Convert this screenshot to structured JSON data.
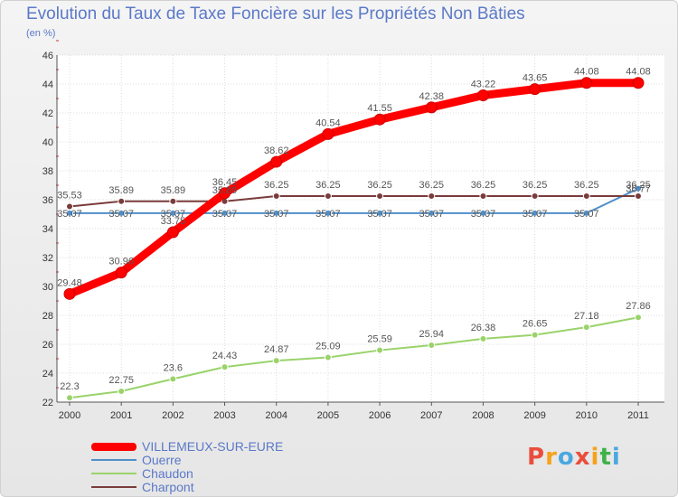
{
  "title": "Evolution du Taux de Taxe Foncière sur les Propriétés Non Bâties",
  "subtitle": "(en %)",
  "logo": {
    "text": "Proxiti",
    "colors": [
      "#e94e3c",
      "#f7a21b",
      "#4aa8e0",
      "#e94e3c",
      "#f7a21b",
      "#3fb24a",
      "#4aa8e0"
    ]
  },
  "chart_data": {
    "type": "line",
    "title": "Evolution du Taux de Taxe Foncière sur les Propriétés Non Bâties",
    "ylabel": "(en %)",
    "xlabel": "",
    "ylim": [
      22,
      46
    ],
    "yticks": [
      22,
      24,
      26,
      28,
      30,
      32,
      34,
      36,
      38,
      40,
      42,
      44,
      46
    ],
    "x": [
      "2000",
      "2001",
      "2002",
      "2003",
      "2004",
      "2005",
      "2006",
      "2007",
      "2008",
      "2009",
      "2010",
      "2011"
    ],
    "grid": true,
    "legend_position": "bottom-left",
    "series": [
      {
        "name": "VILLEMEUX-SUR-EURE",
        "color": "#ff0000",
        "values": [
          29.48,
          30.96,
          33.75,
          36.45,
          38.62,
          40.54,
          41.55,
          42.38,
          43.22,
          43.65,
          44.08,
          44.08
        ],
        "labels": [
          "29.48",
          "30.96",
          "33.75",
          "36.45",
          "38.62",
          "40.54",
          "41.55",
          "42.38",
          "43.22",
          "43.65",
          "44.08",
          "44.08"
        ]
      },
      {
        "name": "Ouerre",
        "color": "#4f8fc9",
        "values": [
          35.07,
          35.07,
          35.07,
          35.07,
          35.07,
          35.07,
          35.07,
          35.07,
          35.07,
          35.07,
          35.07,
          36.77
        ],
        "labels": [
          "35.07",
          "35.07",
          "35.07",
          "35.07",
          "35.07",
          "35.07",
          "35.07",
          "35.07",
          "35.07",
          "35.07",
          "35.07",
          "36.77"
        ]
      },
      {
        "name": "Chaudon",
        "color": "#99d36a",
        "values": [
          22.3,
          22.75,
          23.6,
          24.43,
          24.87,
          25.09,
          25.59,
          25.94,
          26.38,
          26.65,
          27.18,
          27.86
        ],
        "labels": [
          "22.3",
          "22.75",
          "23.6",
          "24.43",
          "24.87",
          "25.09",
          "25.59",
          "25.94",
          "26.38",
          "26.65",
          "27.18",
          "27.86"
        ]
      },
      {
        "name": "Charpont",
        "color": "#7a3b3b",
        "values": [
          35.53,
          35.89,
          35.89,
          35.89,
          36.25,
          36.25,
          36.25,
          36.25,
          36.25,
          36.25,
          36.25,
          36.25
        ],
        "labels": [
          "35.53",
          "35.89",
          "35.89",
          "35.89",
          "36.25",
          "36.25",
          "36.25",
          "36.25",
          "36.25",
          "36.25",
          "36.25",
          "36.25"
        ]
      }
    ]
  }
}
